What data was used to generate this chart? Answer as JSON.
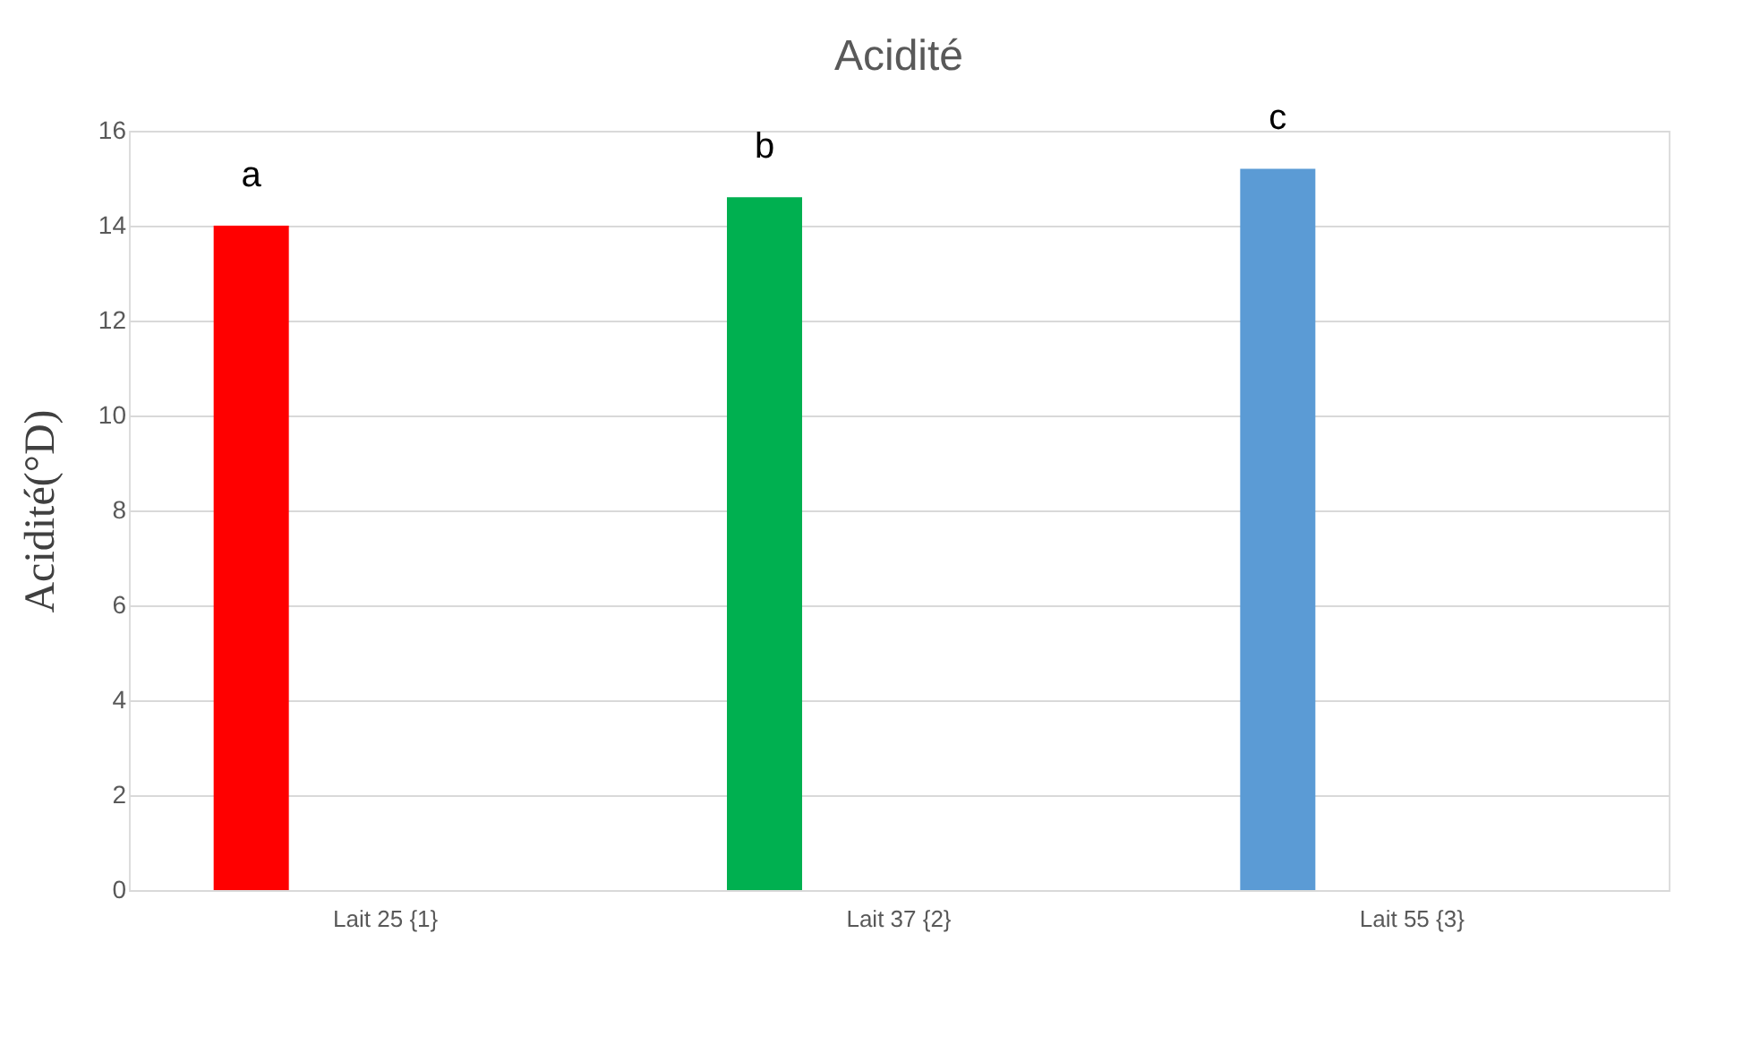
{
  "chart_data": {
    "type": "bar",
    "title": "Acidité",
    "ylabel": "Acidité(°D)",
    "categories": [
      "Lait 25  {1}",
      "Lait 37  {2}",
      "Lait 55  {3}"
    ],
    "values": [
      14.0,
      14.6,
      15.2
    ],
    "colors": [
      "#ff0000",
      "#00b050",
      "#5b9bd5"
    ],
    "ylim": [
      0,
      16
    ],
    "yticks": [
      0,
      2,
      4,
      6,
      8,
      10,
      12,
      14,
      16
    ],
    "grid": "y",
    "legend": false,
    "annotations": [
      "a",
      "b",
      "c"
    ]
  }
}
